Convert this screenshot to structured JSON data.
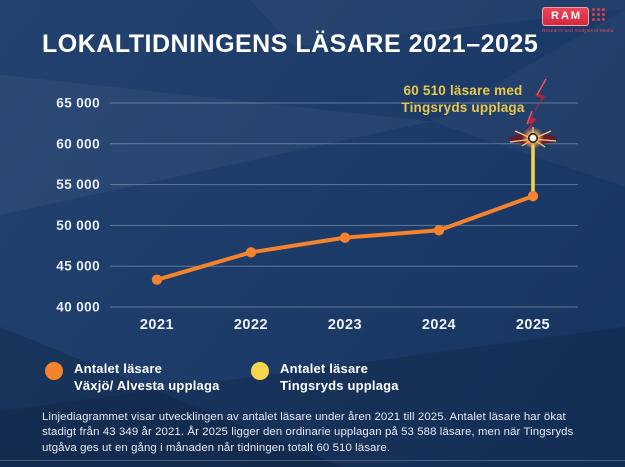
{
  "header": {
    "title": "LOKALTIDNINGENS LÄSARE 2021–2025",
    "logo": {
      "text": "RAM",
      "caption": "Research and Analysis of Media",
      "color": "#E23C50"
    }
  },
  "chart_data": {
    "type": "line",
    "title": "LOKALTIDNINGENS LÄSARE 2021–2025",
    "categories": [
      "2021",
      "2022",
      "2023",
      "2024",
      "2025"
    ],
    "y_ticks": [
      65000,
      60000,
      55000,
      50000,
      45000,
      40000
    ],
    "y_tick_labels": [
      "65 000",
      "60 000",
      "55 000",
      "50 000",
      "45 000",
      "40 000"
    ],
    "ylim": [
      40000,
      65000
    ],
    "grid": true,
    "legend_position": "bottom",
    "series": [
      {
        "name": "Antalet läsare Växjö/ Alvesta upplaga",
        "color": "#F5822D",
        "values": [
          43349,
          46700,
          48500,
          49400,
          53588
        ]
      },
      {
        "name": "Antalet läsare Tingsryds upplaga",
        "color": "#F2D24B",
        "values": [
          null,
          null,
          null,
          null,
          60510
        ]
      }
    ],
    "annotation": {
      "line1": "60 510 läsare med",
      "line2": "Tingsryds upplaga",
      "color": "#E9C94B"
    }
  },
  "legend": {
    "items": [
      {
        "swatch_color": "#F5822D",
        "line1": "Antalet läsare",
        "line2": "Växjö/ Alvesta upplaga"
      },
      {
        "swatch_color": "#F6D54E",
        "line1": "Antalet läsare",
        "line2": "Tingsryds upplaga"
      }
    ]
  },
  "footer": {
    "text": "Linjediagrammet visar utvecklingen av antalet läsare under åren 2021 till 2025. Antalet läsare har ökat stadigt från 43 349 år 2021. År 2025 ligger den ordinarie upplagan på 53 588 läsare, men när Tingsryds utgåva ges ut en gång i månaden når tidningen totalt 60 510 läsare."
  }
}
